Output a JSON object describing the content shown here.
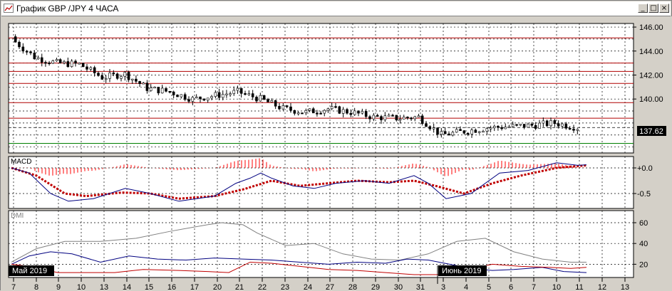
{
  "window": {
    "title": "График GBP /JPY  4 ЧАСА",
    "buttons": {
      "minimize": "_",
      "maximize": "□",
      "close": "×"
    }
  },
  "colors": {
    "background": "#ffffff",
    "grid": "#000000",
    "horizontal_line": "#b00000",
    "support_line": "#008000",
    "macd_hist": "#ff0000",
    "macd_signal": "#c00000",
    "macd_line": "#000080",
    "dmi_adx": "#808080",
    "dmi_plus": "#000080",
    "dmi_minus": "#c00000"
  },
  "price_panel": {
    "y_ticks": [
      "146.00",
      "144.00",
      "142.00",
      "140.00"
    ],
    "last_price": "137.62",
    "horizontal_levels": [
      145.1,
      143.0,
      142.3,
      141.3,
      139.7,
      138.4
    ],
    "support_level": 136.3
  },
  "macd_panel": {
    "label": "MACD",
    "y_ticks": [
      "+0.0",
      "-0.5"
    ]
  },
  "dmi_panel": {
    "label": "DMI",
    "y_ticks": [
      "60",
      "40",
      "20"
    ]
  },
  "x_axis": {
    "labels": [
      "7",
      "8",
      "9",
      "10",
      "13",
      "14",
      "15",
      "16",
      "17",
      "20",
      "21",
      "22",
      "23",
      "24",
      "27",
      "28",
      "29",
      "30",
      "31",
      "3",
      "4",
      "5",
      "6",
      "7",
      "10",
      "11",
      "12",
      "13"
    ],
    "month_labels": [
      "Май 2019",
      "Июнь 2019"
    ]
  },
  "chart_data": {
    "type": "candlestick",
    "symbol": "GBP/JPY",
    "timeframe": "4 ЧАСА",
    "ylim": [
      135.5,
      146.3
    ],
    "x": [
      "7",
      "8",
      "9",
      "10",
      "13",
      "14",
      "15",
      "16",
      "17",
      "20",
      "21",
      "22",
      "23",
      "24",
      "27",
      "28",
      "29",
      "30",
      "31",
      "3",
      "4",
      "5",
      "6",
      "7",
      "10",
      "11"
    ],
    "close": [
      145.0,
      143.5,
      143.0,
      142.9,
      141.8,
      142.1,
      140.9,
      140.6,
      140.0,
      140.3,
      140.6,
      140.0,
      139.2,
      138.9,
      139.2,
      138.9,
      138.5,
      138.4,
      138.5,
      137.0,
      137.3,
      137.6,
      137.7,
      137.8,
      138.0,
      137.62
    ],
    "macd": {
      "line_range": [
        -0.75,
        0.1
      ],
      "signal_range": [
        -0.7,
        0.05
      ]
    },
    "dmi": {
      "adx_range": [
        15,
        62
      ],
      "plus_di_range": [
        5,
        35
      ],
      "minus_di_range": [
        5,
        25
      ]
    }
  }
}
